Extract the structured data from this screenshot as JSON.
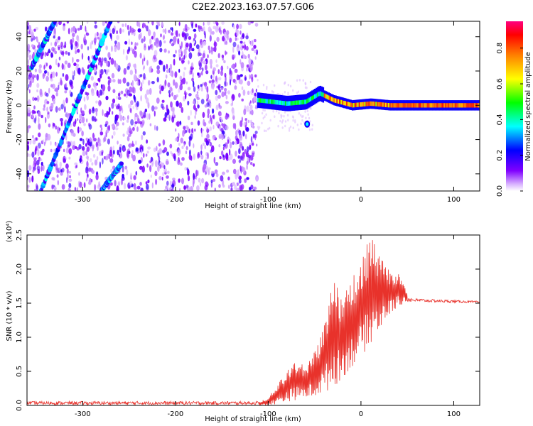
{
  "title": "C2E2.2023.163.07.57.G06",
  "chart_data": [
    {
      "type": "heatmap",
      "panel": "spectrogram",
      "xlabel": "Height of straight line (km)",
      "ylabel": "Frequency (Hz)",
      "xlim": [
        -360,
        128
      ],
      "ylim": [
        -50,
        49
      ],
      "x_ticks": [
        -300,
        -200,
        -100,
        0,
        100
      ],
      "y_ticks": [
        -40,
        -20,
        0,
        20,
        40
      ],
      "colorbar": {
        "label": "Normalized spectral amplitude",
        "range": [
          0.0,
          0.95
        ],
        "ticks": [
          0.0,
          0.2,
          0.4,
          0.6,
          0.8
        ]
      },
      "features": {
        "noise_region_x": [
          -360,
          -112
        ],
        "diagonal_tracks": [
          {
            "x_start": -355,
            "y_start": 22,
            "x_end": -330,
            "y_end": 49
          },
          {
            "x_start": -345,
            "y_start": -50,
            "x_end": -270,
            "y_end": 49
          },
          {
            "x_start": -280,
            "y_start": -50,
            "x_end": -258,
            "y_end": -34
          }
        ],
        "signal_band": [
          {
            "x": -112,
            "y": 3
          },
          {
            "x": -80,
            "y": 1
          },
          {
            "x": -60,
            "y": 2
          },
          {
            "x": -45,
            "y": 7
          },
          {
            "x": -30,
            "y": 3
          },
          {
            "x": -10,
            "y": 0
          },
          {
            "x": 10,
            "y": 1
          },
          {
            "x": 30,
            "y": 0
          },
          {
            "x": 60,
            "y": 0
          },
          {
            "x": 128,
            "y": 0
          }
        ]
      }
    },
    {
      "type": "line",
      "panel": "snr",
      "xlabel": "Height of straight line (km)",
      "ylabel": "SNR (10 * v/v)",
      "y_scale_label": "(x10⁴)",
      "xlim": [
        -360,
        128
      ],
      "ylim": [
        0,
        2.5
      ],
      "x_ticks": [
        -300,
        -200,
        -100,
        0,
        100
      ],
      "y_ticks": [
        0.0,
        0.5,
        1.0,
        1.5,
        2.0,
        2.5
      ],
      "series": [
        {
          "color": "#e8322b",
          "envelope_low": [
            [
              -360,
              0
            ],
            [
              -100,
              0
            ],
            [
              -90,
              0.02
            ],
            [
              -70,
              0.08
            ],
            [
              -50,
              0.12
            ],
            [
              -40,
              0.18
            ],
            [
              -30,
              0.25
            ],
            [
              -20,
              0.4
            ],
            [
              -10,
              0.55
            ],
            [
              0,
              0.7
            ],
            [
              10,
              0.9
            ],
            [
              20,
              1.1
            ],
            [
              30,
              1.3
            ],
            [
              40,
              1.45
            ],
            [
              50,
              1.52
            ],
            [
              128,
              1.5
            ]
          ],
          "envelope_high": [
            [
              -360,
              0.05
            ],
            [
              -110,
              0.05
            ],
            [
              -100,
              0.12
            ],
            [
              -90,
              0.3
            ],
            [
              -80,
              0.55
            ],
            [
              -70,
              0.65
            ],
            [
              -60,
              0.6
            ],
            [
              -50,
              0.8
            ],
            [
              -40,
              1.2
            ],
            [
              -30,
              1.9
            ],
            [
              -20,
              1.6
            ],
            [
              -10,
              1.9
            ],
            [
              0,
              2.1
            ],
            [
              10,
              2.52
            ],
            [
              20,
              2.2
            ],
            [
              30,
              2.0
            ],
            [
              40,
              1.95
            ],
            [
              50,
              1.65
            ],
            [
              60,
              1.6
            ],
            [
              128,
              1.55
            ]
          ]
        }
      ]
    }
  ]
}
